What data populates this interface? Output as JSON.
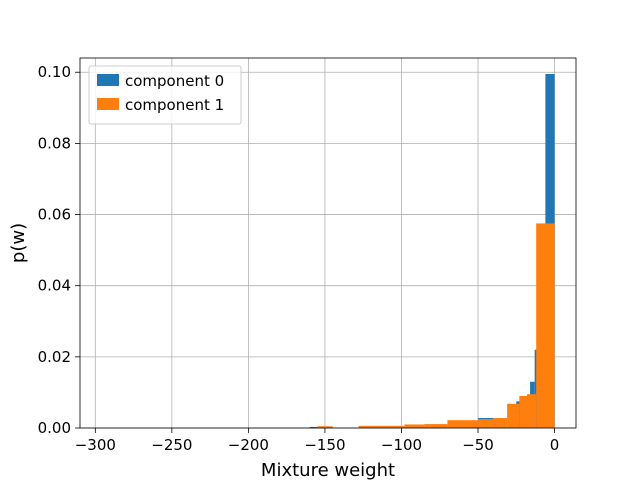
{
  "chart_data": {
    "type": "histogram",
    "title": "",
    "xlabel": "Mixture weight",
    "ylabel": "p(w)",
    "xlim": [
      -310,
      14
    ],
    "ylim": [
      0,
      0.104
    ],
    "grid": true,
    "legend_position": "top-left",
    "x_ticks": [
      -300,
      -250,
      -200,
      -150,
      -100,
      -50,
      0
    ],
    "x_tick_labels": [
      "−300",
      "−250",
      "−200",
      "−150",
      "−100",
      "−50",
      "0"
    ],
    "y_ticks": [
      0.0,
      0.02,
      0.04,
      0.06,
      0.08,
      0.1
    ],
    "y_tick_labels": [
      "0.00",
      "0.02",
      "0.04",
      "0.06",
      "0.08",
      "0.10"
    ],
    "series": [
      {
        "name": "component 0",
        "color": "#1f77b4",
        "bins": [
          {
            "x0": -160,
            "x1": -152,
            "y": 0.0003
          },
          {
            "x0": -125,
            "x1": -110,
            "y": 0.0004
          },
          {
            "x0": -85,
            "x1": -75,
            "y": 0.0009
          },
          {
            "x0": -50,
            "x1": -40,
            "y": 0.0028
          },
          {
            "x0": -25,
            "x1": -22,
            "y": 0.0075
          },
          {
            "x0": -22,
            "x1": -19,
            "y": 0.009
          },
          {
            "x0": -19,
            "x1": -16,
            "y": 0.009
          },
          {
            "x0": -16,
            "x1": -13,
            "y": 0.013
          },
          {
            "x0": -13,
            "x1": -10,
            "y": 0.022
          },
          {
            "x0": -6,
            "x1": 0,
            "y": 0.0995
          }
        ]
      },
      {
        "name": "component 1",
        "color": "#ff7f0e",
        "bins": [
          {
            "x0": -155,
            "x1": -145,
            "y": 0.0005
          },
          {
            "x0": -128,
            "x1": -98,
            "y": 0.0006
          },
          {
            "x0": -98,
            "x1": -85,
            "y": 0.001
          },
          {
            "x0": -85,
            "x1": -70,
            "y": 0.0011
          },
          {
            "x0": -70,
            "x1": -50,
            "y": 0.0022
          },
          {
            "x0": -50,
            "x1": -40,
            "y": 0.0025
          },
          {
            "x0": -40,
            "x1": -31,
            "y": 0.0028
          },
          {
            "x0": -31,
            "x1": -23,
            "y": 0.0068
          },
          {
            "x0": -23,
            "x1": -18,
            "y": 0.009
          },
          {
            "x0": -18,
            "x1": -12,
            "y": 0.0095
          },
          {
            "x0": -12,
            "x1": 0,
            "y": 0.0575
          }
        ]
      }
    ]
  }
}
